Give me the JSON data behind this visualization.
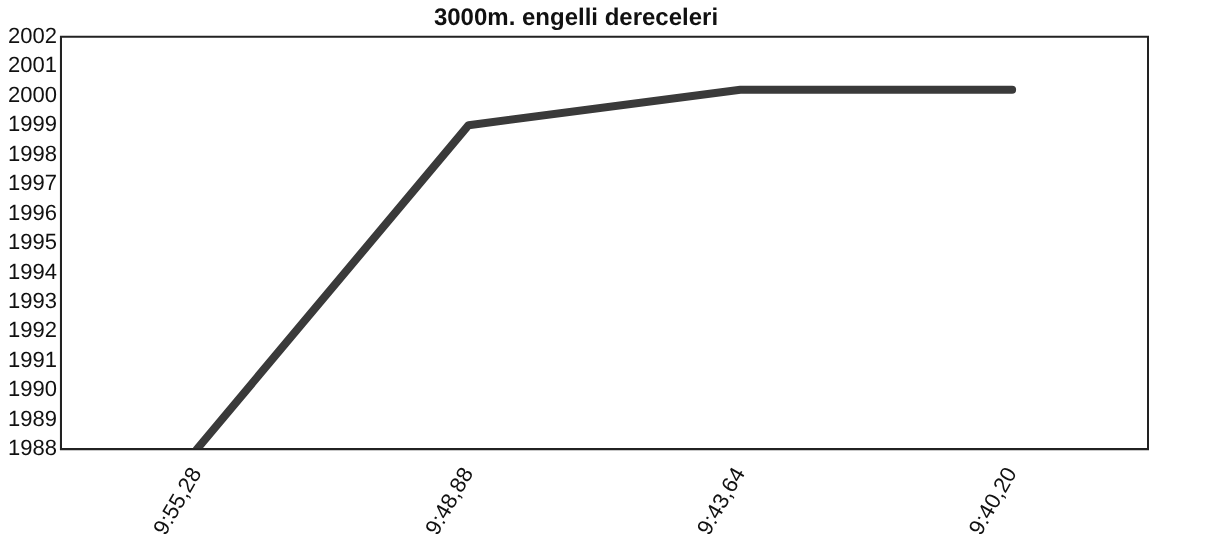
{
  "chart_data": {
    "type": "line",
    "title": "3000m. engelli dereceleri",
    "categories": [
      "9:55,28",
      "9:48,88",
      "9:43,64",
      "9:40,20"
    ],
    "series": [
      {
        "color": "#3a3a3a",
        "values": [
          1988,
          1999,
          2000.2,
          2000.2
        ]
      }
    ],
    "ylim": [
      1988,
      2002
    ],
    "yticks": [
      1988,
      1989,
      1990,
      1991,
      1992,
      1993,
      1994,
      1995,
      1996,
      1997,
      1998,
      1999,
      2000,
      2001,
      2002
    ],
    "grid": false,
    "legend": false,
    "marker": "none",
    "line_style": "solid"
  }
}
